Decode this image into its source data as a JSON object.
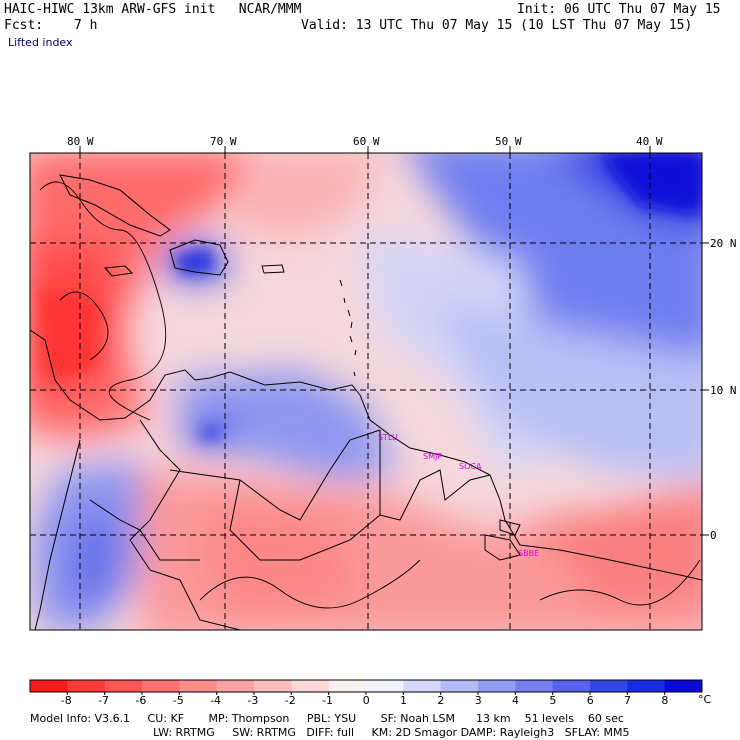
{
  "header": {
    "title": "HAIC-HIWC 13km ARW-GFS init   NCAR/MMM",
    "fcst_label": "Fcst:",
    "fcst_value": "7 h",
    "field": "Lifted index",
    "init": "Init: 06 UTC Thu 07 May 15",
    "valid": "Valid: 13 UTC Thu 07 May 15 (10 LST Thu 07 May 15)"
  },
  "map": {
    "lon_labels": [
      "80 W",
      "70 W",
      "60 W",
      "50 W",
      "40 W"
    ],
    "lat_labels": [
      "20 N",
      "10 N",
      "0"
    ],
    "stations": [
      "STLU",
      "SMJP",
      "SOCA",
      "SBBE"
    ]
  },
  "colorbar": {
    "unit": "°C",
    "tick_labels": [
      "-8",
      "-7",
      "-6",
      "-5",
      "-4",
      "-3",
      "-2",
      "-1",
      "0",
      "1",
      "2",
      "3",
      "4",
      "5",
      "6",
      "7",
      "8"
    ],
    "colors": [
      "#ff1a1a",
      "#ff3a3a",
      "#ff5555",
      "#ff7070",
      "#fc8c8c",
      "#fba3a3",
      "#fbbdbd",
      "#fdd6d6",
      "#fff0f0",
      "#f0f0ff",
      "#d4d8fc",
      "#b4bcf8",
      "#939df2",
      "#7580ee",
      "#5663ea",
      "#3645e6",
      "#1a2ae2",
      "#0a0ad8"
    ]
  },
  "model_info": {
    "line1": "Model Info: V3.6.1     CU: KF       MP: Thompson     PBL: YSU       SF: Noah LSM      13 km    51 levels    60 sec",
    "line2": "LW: RRTMG     SW: RRTMG   DIFF: full     KM: 2D Smagor DAMP: Rayleigh3   SFLAY: MM5"
  }
}
